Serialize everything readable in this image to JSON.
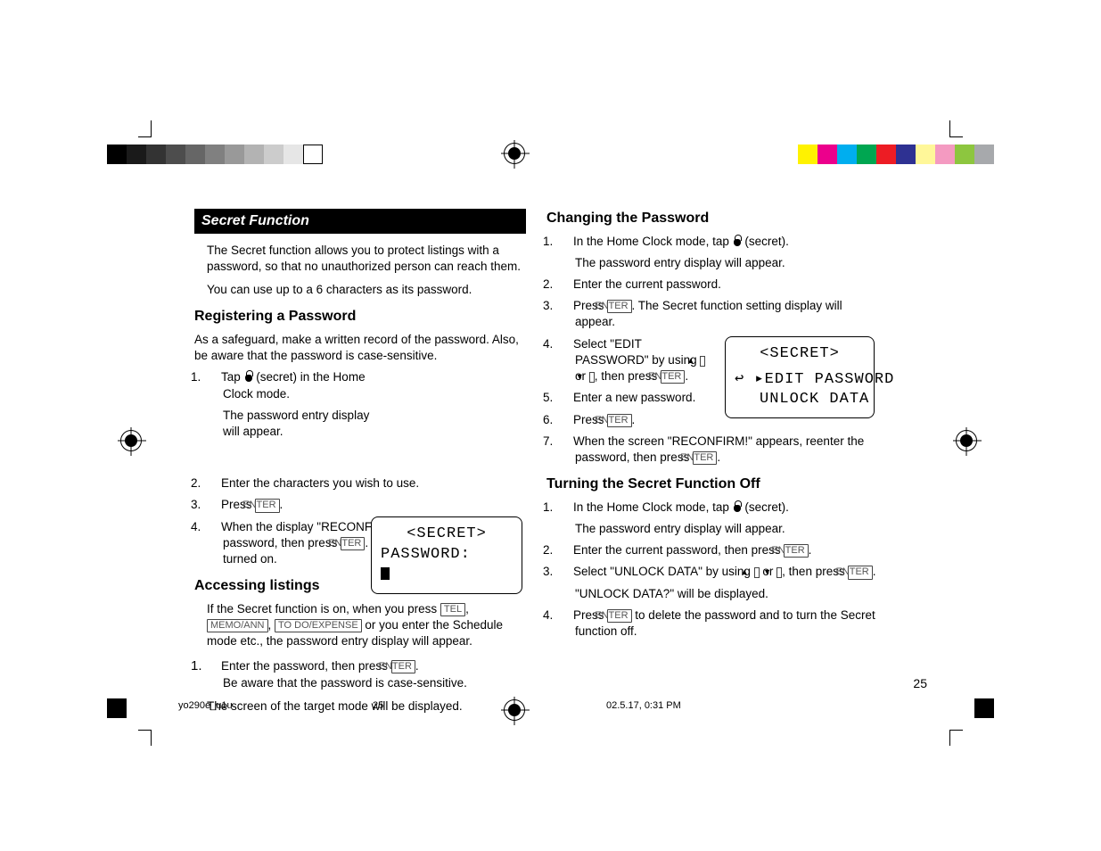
{
  "colorbar": {
    "grays": [
      "#000000",
      "#1a1a1a",
      "#333333",
      "#4d4d4d",
      "#666666",
      "#808080",
      "#999999",
      "#b3b3b3",
      "#cccccc",
      "#e6e6e6",
      "#ffffff"
    ],
    "colors": [
      "#fff200",
      "#ec008c",
      "#00aeef",
      "#00a651",
      "#ed1c24",
      "#2e3192",
      "#fff799",
      "#f49ac1",
      "#8dc63f",
      "#a7a9ac"
    ]
  },
  "header": {
    "title": "Secret Function"
  },
  "intro": {
    "p1": "The Secret function allows you to protect listings with a password, so that no unauthorized person can reach them.",
    "p2": "You can use up to a 6 characters as its password."
  },
  "registering": {
    "heading": "Registering a Password",
    "note": "As a safeguard, make a written record of the password. Also, be aware that the password is case-sensitive.",
    "s1a": "Tap ",
    "s1b": " (secret) in the Home Clock mode.",
    "s1_sub": "The password entry display will appear.",
    "s2": "Enter the characters you wish to use.",
    "s3a": "Press ",
    "s3b": ".",
    "s4a": "When the display \"RECONFIRM!\" appears, reenter the password, then press ",
    "s4b": ". The Secret function will be turned on."
  },
  "accessing": {
    "heading": "Accessing listings",
    "p1a": "If the Secret function is on, when you press ",
    "p1b": ", ",
    "p1c": ", ",
    "p1d": " or you enter the Schedule mode etc., the password entry display will appear.",
    "s1a": "Enter the password, then press ",
    "s1b": ".",
    "s1_sub": "Be aware that the password is case-sensitive.",
    "p2": "The screen of the target mode will be displayed."
  },
  "changing": {
    "heading": "Changing the Password",
    "s1a": "In the Home Clock mode, tap ",
    "s1b": " (secret).",
    "s1_sub": "The password entry display will appear.",
    "s2": "Enter the current password.",
    "s3a": "Press ",
    "s3b": ". The Secret function setting display will appear.",
    "s4a": "Select \"EDIT PASSWORD\" by using ",
    "s4b": " or ",
    "s4c": ", then press ",
    "s4d": ".",
    "s5": "Enter a new password.",
    "s6a": "Press ",
    "s6b": ".",
    "s7a": "When the screen \"RECONFIRM!\" appears, reenter the password, then press ",
    "s7b": "."
  },
  "turning_off": {
    "heading": "Turning the Secret Function Off",
    "s1a": "In the Home Clock mode, tap ",
    "s1b": " (secret).",
    "s1_sub": "The password entry display will appear.",
    "s2a": "Enter the current password, then press ",
    "s2b": ".",
    "s3a": "Select \"UNLOCK DATA\" by using ",
    "s3b": " or ",
    "s3c": ", then press ",
    "s3d": ".",
    "s3_sub": "\"UNLOCK DATA?\" will be displayed.",
    "s4a": "Press ",
    "s4b": " to delete the password and to turn the Secret function off."
  },
  "keys": {
    "enter": "ENTER",
    "tel": "TEL",
    "memo_ann": "MEMO/ANN",
    "todo_expense": "TO DO/EXPENSE",
    "up": "▲",
    "down": "▼"
  },
  "lcd1": {
    "line1": "<SECRET>",
    "line2": "PASSWORD:"
  },
  "lcd2": {
    "line1": "<SECRET>",
    "arrow": "↩ ▸",
    "line2": "EDIT PASSWORD",
    "line3": "UNLOCK DATA"
  },
  "footer": {
    "pagenum": "25",
    "file": "yo290e_u1u",
    "page": "25",
    "datetime": "02.5.17, 0:31 PM"
  }
}
